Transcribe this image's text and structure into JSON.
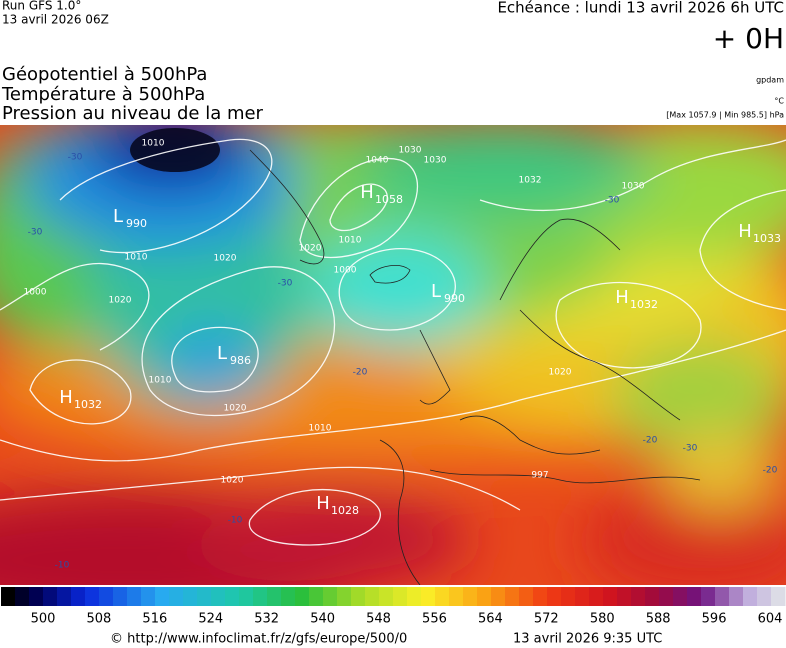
{
  "header": {
    "run": "Run GFS 1.0°",
    "run_date": "13 avril 2026 06Z",
    "echeance": "Echéance : lundi 13 avril 2026 6h UTC",
    "offset": "+ 0H",
    "titles": [
      "Géopotentiel à 500hPa",
      "Température à 500hPa",
      "Pression au niveau de la mer"
    ],
    "unit_geo": "gpdam",
    "unit_temp": "°C",
    "range": "[Max 1057.9 | Min 985.5] hPa"
  },
  "map": {
    "centers": [
      {
        "letter": "L",
        "value": "990"
      },
      {
        "letter": "H",
        "value": "1058"
      },
      {
        "letter": "L",
        "value": "990"
      },
      {
        "letter": "L",
        "value": "986"
      },
      {
        "letter": "H",
        "value": "1032"
      },
      {
        "letter": "H",
        "value": "1028"
      },
      {
        "letter": "H",
        "value": "1033"
      },
      {
        "letter": "H",
        "value": "1032"
      }
    ],
    "isobar_labels": [
      "1010",
      "1040",
      "1030",
      "1020",
      "1010",
      "1000",
      "1010",
      "1020",
      "1020",
      "1010",
      "1030",
      "1020",
      "1000",
      "1010",
      "1020",
      "1032",
      "1030",
      "997",
      "1020"
    ],
    "temp_labels": [
      "-30",
      "-30",
      "-30",
      "-20",
      "-10",
      "-10",
      "-30",
      "-20",
      "-30",
      "-20"
    ]
  },
  "colorbar": {
    "labels": [
      "500",
      "508",
      "516",
      "524",
      "532",
      "540",
      "548",
      "556",
      "564",
      "572",
      "580",
      "588",
      "596",
      "604"
    ]
  },
  "footer": {
    "url": "© http://www.infoclimat.fr/z/gfs/europe/500/0",
    "date": "13 avril 2026  9:35 UTC"
  }
}
